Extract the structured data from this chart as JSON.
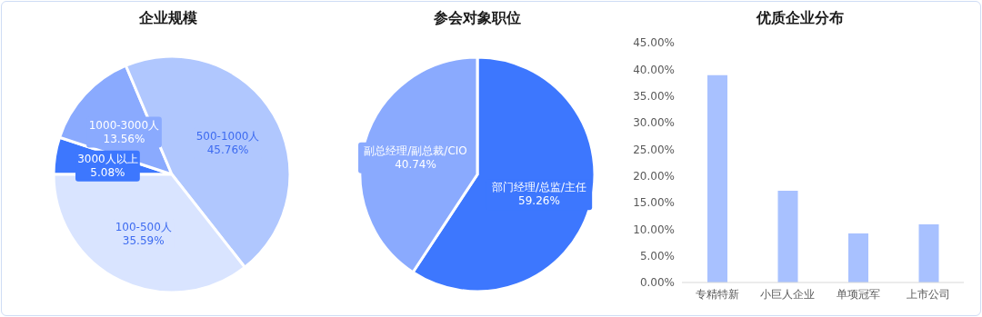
{
  "chart_data": [
    {
      "type": "pie",
      "title": "企业规模",
      "categories": [
        "3000人以上",
        "1000-3000人",
        "500-1000人",
        "100-500人"
      ],
      "values": [
        5.08,
        13.56,
        45.76,
        35.59
      ],
      "colors": [
        "#3d77fe",
        "#8aaafe",
        "#b0c7fe",
        "#d9e4ff"
      ],
      "value_labels": [
        "5.08%",
        "13.56%",
        "45.76%",
        "35.59%"
      ],
      "legend": false
    },
    {
      "type": "pie",
      "title": "参会对象职位",
      "categories": [
        "部门经理/总监/主任",
        "副总经理/副总裁/CIO"
      ],
      "values": [
        59.26,
        40.74
      ],
      "colors": [
        "#3d77fe",
        "#8aaafe"
      ],
      "value_labels": [
        "59.26%",
        "40.74%"
      ],
      "legend": false
    },
    {
      "type": "bar",
      "title": "优质企业分布",
      "categories": [
        "专精特新",
        "小巨人企业",
        "单项冠军",
        "上市公司"
      ],
      "values": [
        38.9,
        17.2,
        9.2,
        10.9
      ],
      "color": "#a8c1ff",
      "ylim": [
        0,
        45
      ],
      "yticks": [
        {
          "value": 0,
          "label": "0.00%"
        },
        {
          "value": 5,
          "label": "5.00%"
        },
        {
          "value": 10,
          "label": "10.00%"
        },
        {
          "value": 15,
          "label": "15.00%"
        },
        {
          "value": 20,
          "label": "20.00%"
        },
        {
          "value": 25,
          "label": "25.00%"
        },
        {
          "value": 30,
          "label": "30.00%"
        },
        {
          "value": 35,
          "label": "35.00%"
        },
        {
          "value": 40,
          "label": "40.00%"
        },
        {
          "value": 45,
          "label": "45.00%"
        }
      ],
      "grid": false,
      "legend": false
    }
  ]
}
